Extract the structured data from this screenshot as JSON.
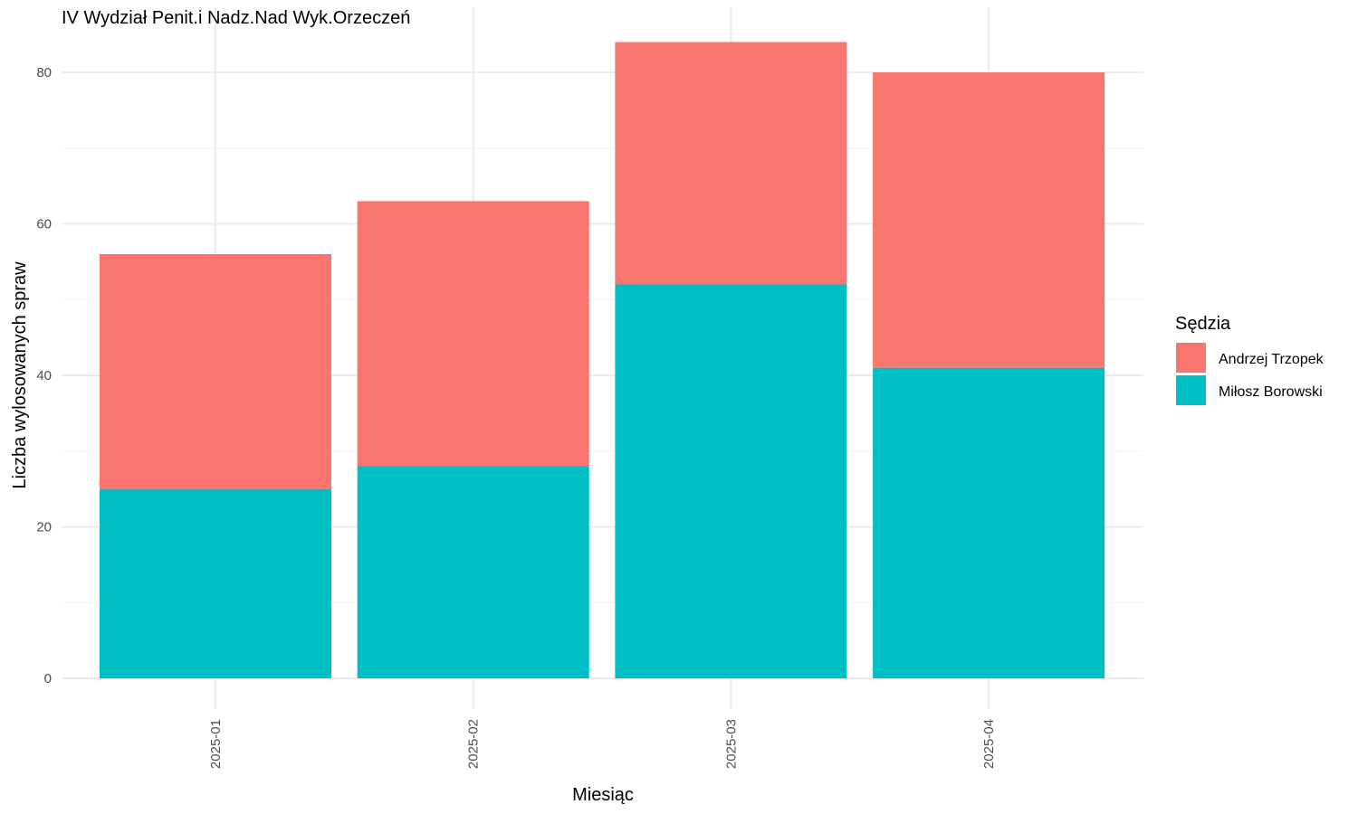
{
  "chart_data": {
    "type": "bar",
    "stacked": true,
    "title": "IV Wydział Penit.i Nadz.Nad Wyk.Orzeczeń",
    "xlabel": "Miesiąc",
    "ylabel": "Liczba wylosowanych spraw",
    "categories": [
      "2025-01",
      "2025-02",
      "2025-03",
      "2025-04"
    ],
    "y_ticks": [
      0,
      20,
      40,
      60,
      80
    ],
    "ylim": [
      0,
      88
    ],
    "grid": true,
    "legend": {
      "title": "Sędzia",
      "position": "right"
    },
    "series": [
      {
        "name": "Miłosz Borowski",
        "color": "#00BFC4",
        "values": [
          25,
          28,
          52,
          41
        ]
      },
      {
        "name": "Andrzej Trzopek",
        "color": "#F8766D",
        "values": [
          31,
          35,
          32,
          39
        ]
      }
    ]
  }
}
